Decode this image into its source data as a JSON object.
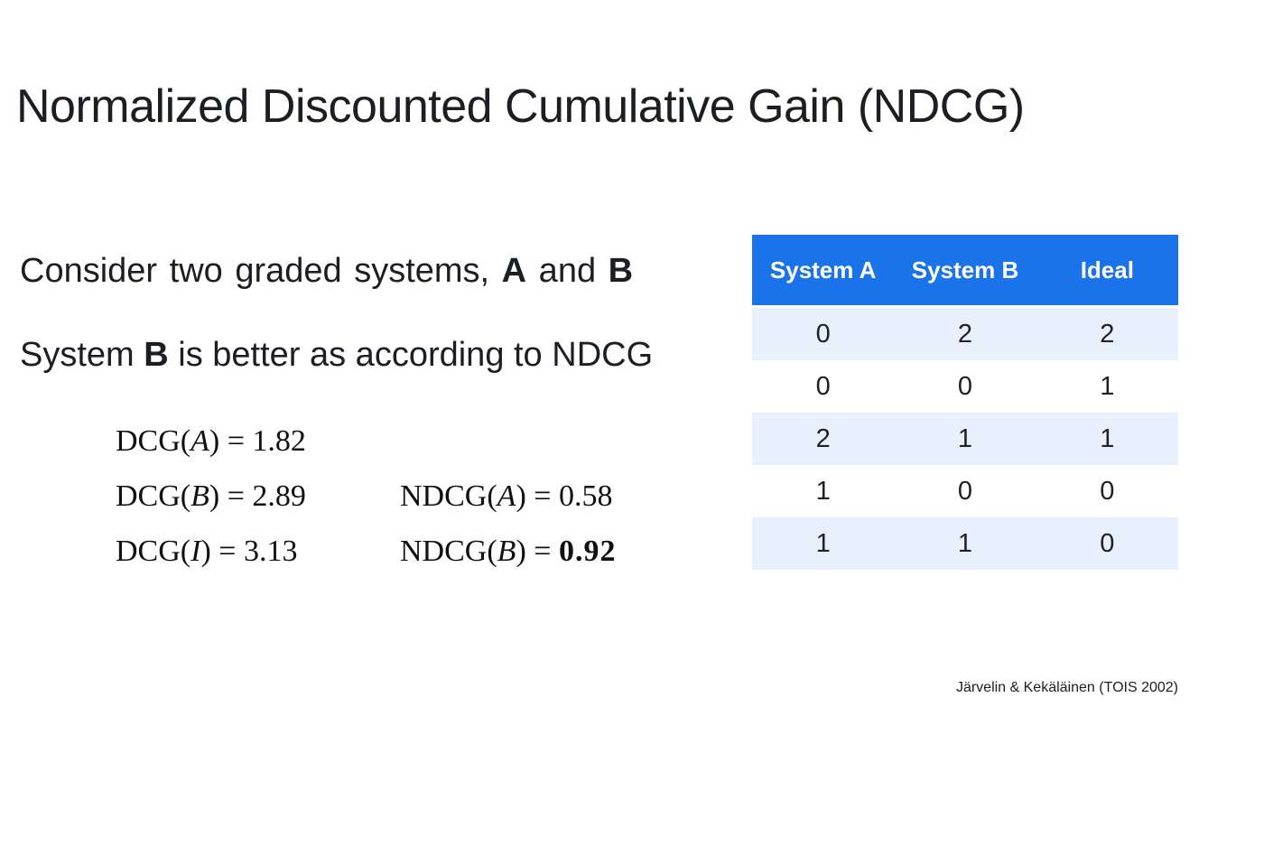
{
  "slide": {
    "title": "Normalized Discounted Cumulative Gain (NDCG)",
    "citation": "Järvelin & Kekäläinen (TOIS 2002)"
  },
  "body": {
    "line1": {
      "pre": "Consider two graded systems, ",
      "bold1": "A",
      "mid": " and ",
      "bold2": "B"
    },
    "line2": {
      "pre": "System ",
      "bold1": "B",
      "post": " is better as according to NDCG"
    }
  },
  "math": {
    "dcg": [
      {
        "pre": "DCG(",
        "var": "A",
        "post": ") = ",
        "val": "1.82"
      },
      {
        "pre": "DCG(",
        "var": "B",
        "post": ") = ",
        "val": "2.89"
      },
      {
        "pre": "DCG(",
        "var": "I",
        "post": ") = ",
        "val": "3.13"
      }
    ],
    "ndcg": [
      {
        "pre": "NDCG(",
        "var": "A",
        "post": ") = ",
        "val": "0.58"
      },
      {
        "pre": "NDCG(",
        "var": "B",
        "post": ") = ",
        "val": "0.92"
      }
    ]
  },
  "table": {
    "headers": [
      "System A",
      "System B",
      "Ideal"
    ],
    "rows": [
      [
        "0",
        "2",
        "2"
      ],
      [
        "0",
        "0",
        "1"
      ],
      [
        "2",
        "1",
        "1"
      ],
      [
        "1",
        "0",
        "0"
      ],
      [
        "1",
        "1",
        "0"
      ]
    ]
  },
  "colors": {
    "header_blue": "#1a73e8",
    "row_light_blue": "#e8f0fe",
    "row_white": "#ffffff",
    "text_dark": "#1b1e22"
  }
}
